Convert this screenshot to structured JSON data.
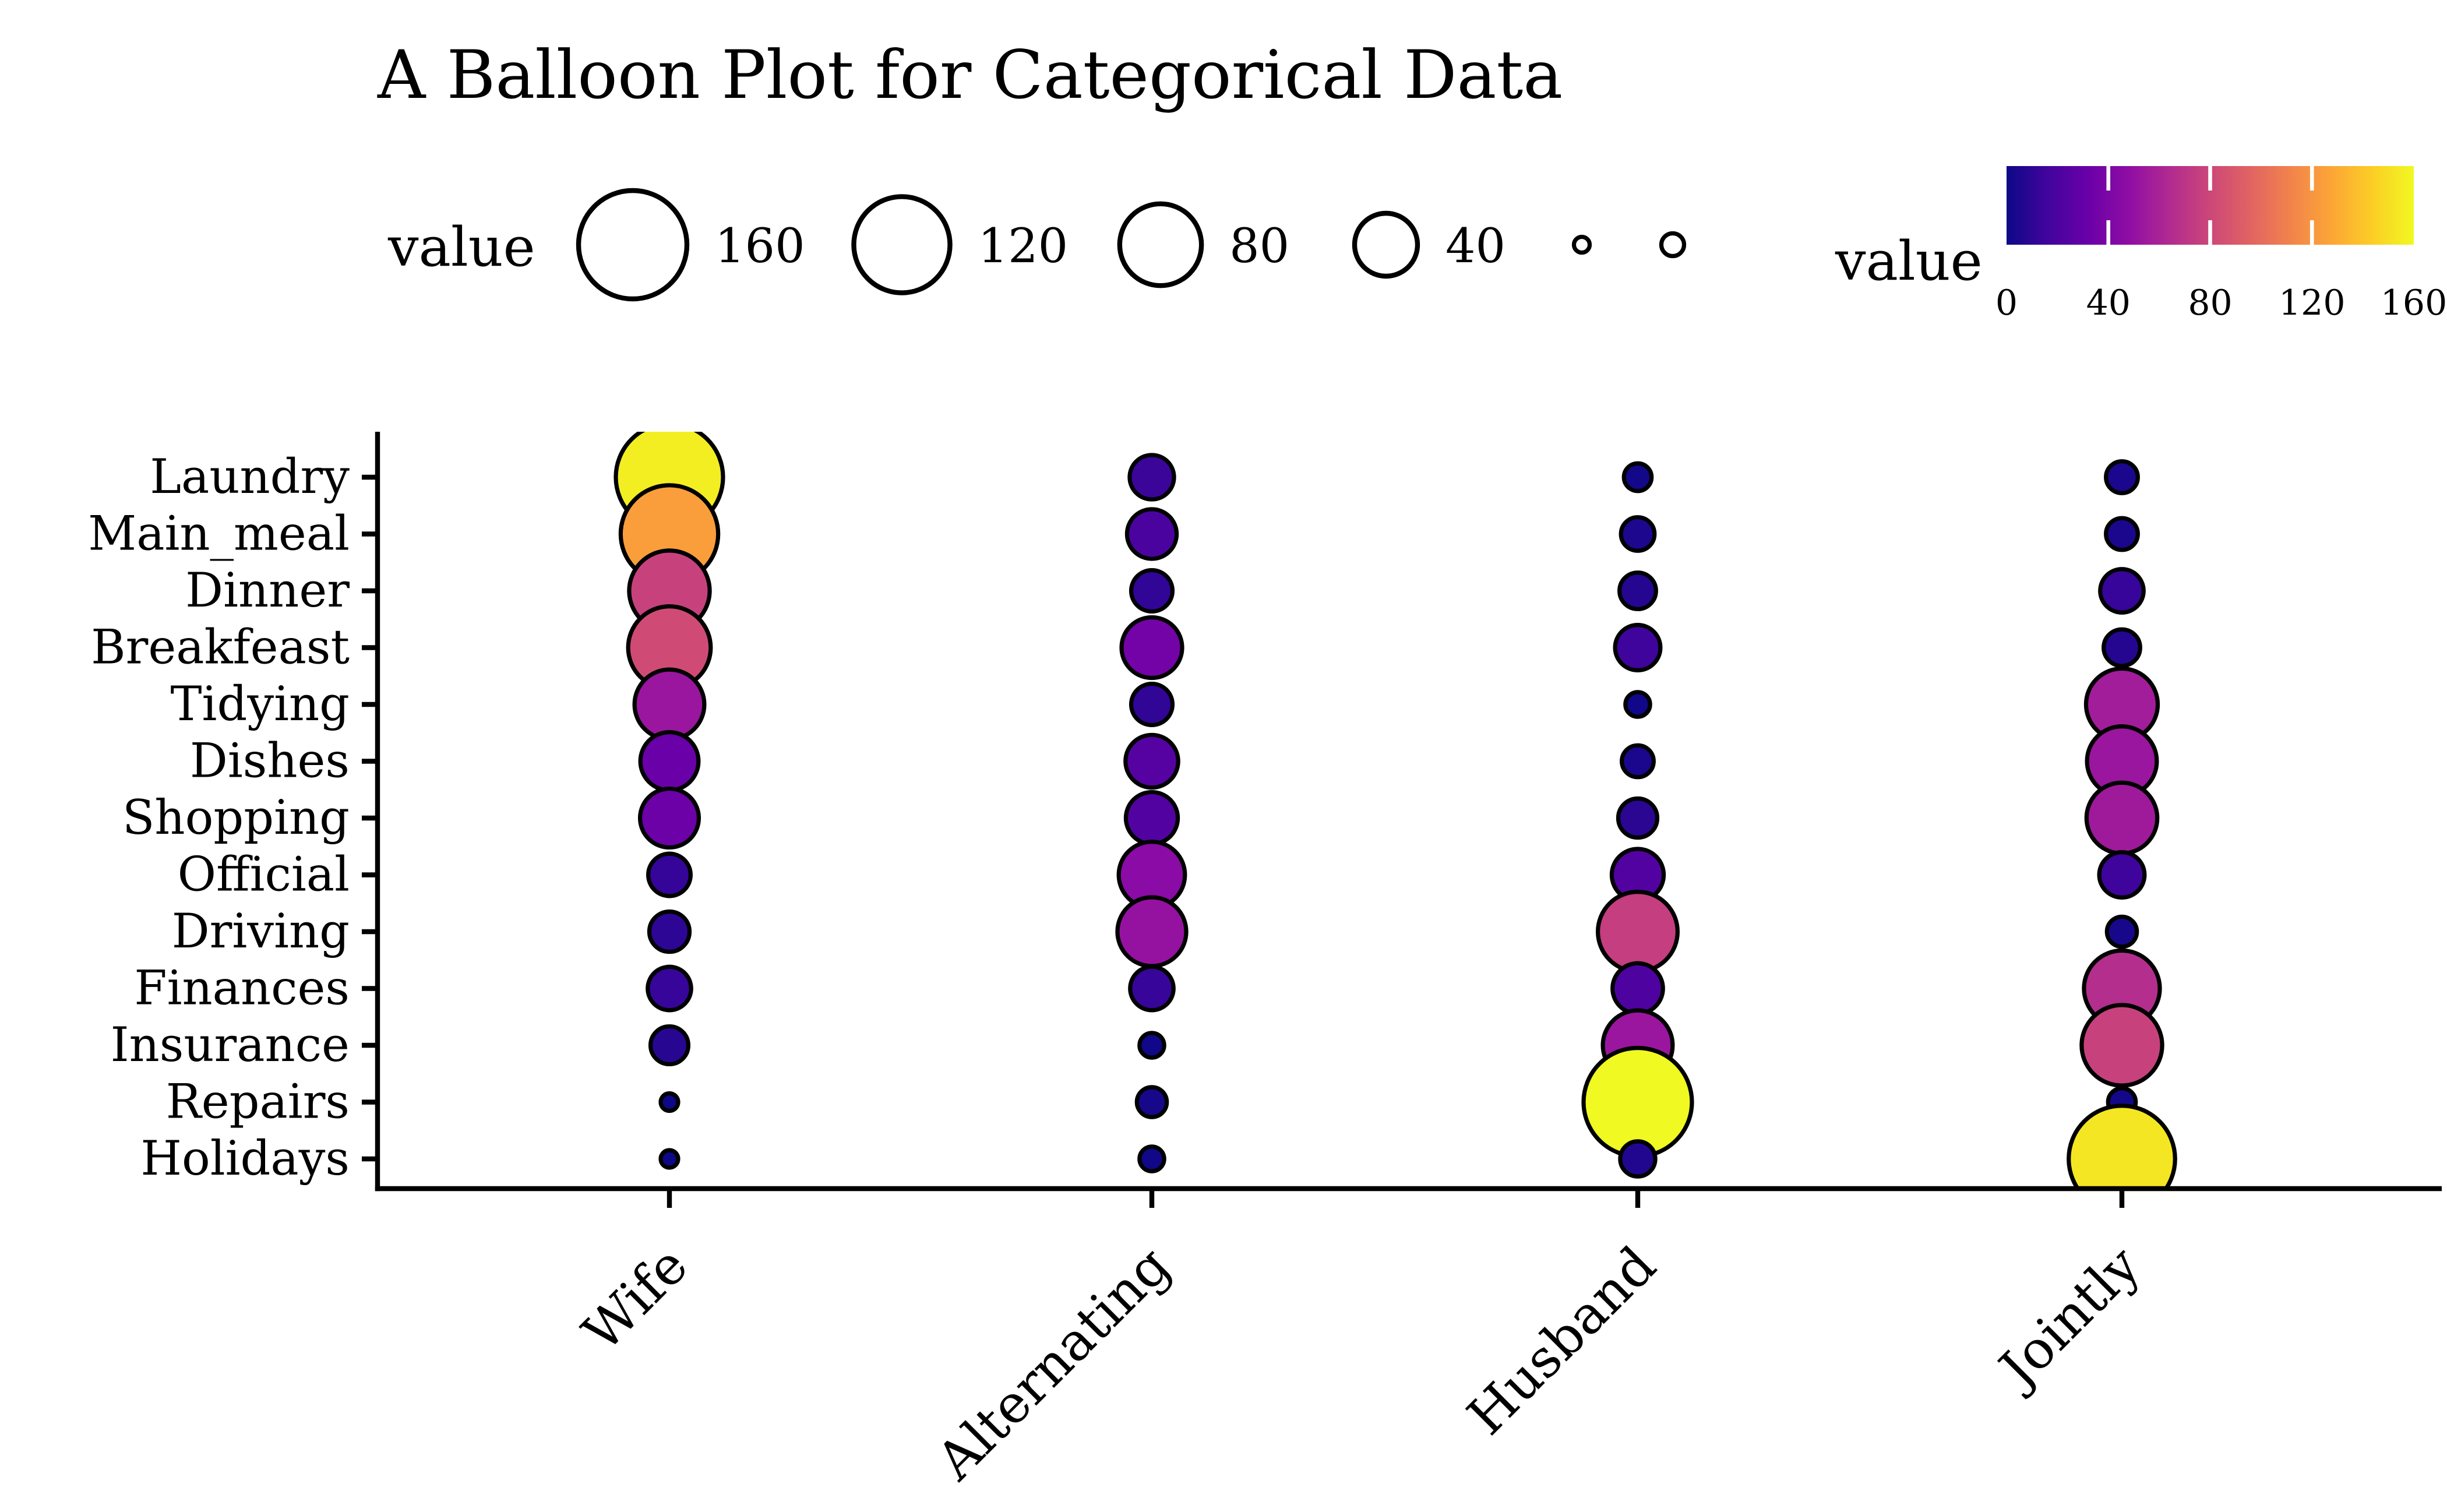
{
  "title": "A Balloon Plot for Categorical Data",
  "size_legend": {
    "label": "value",
    "breaks": [
      {
        "value": 160,
        "label": "160"
      },
      {
        "value": 120,
        "label": "120"
      },
      {
        "value": 80,
        "label": "80"
      },
      {
        "value": 40,
        "label": "40"
      }
    ],
    "unlabeled_dot_radii": [
      4.5,
      6.5
    ]
  },
  "color_legend": {
    "label": "value",
    "tick_values": [
      0,
      40,
      80,
      120,
      160
    ],
    "tick_labels": [
      "0",
      "40",
      "80",
      "120",
      "160"
    ],
    "min": 0,
    "max": 160
  },
  "palette": {
    "name": "plasma",
    "stops": [
      "#0d0887",
      "#41049d",
      "#6a00a8",
      "#8f0da4",
      "#b12a90",
      "#cc4778",
      "#e16462",
      "#f2844b",
      "#fca636",
      "#fcce25",
      "#f0f921"
    ]
  },
  "chart_data": {
    "type": "balloon",
    "title": "A Balloon Plot for Categorical Data",
    "rows": [
      "Laundry",
      "Main_meal",
      "Dinner",
      "Breakfeast",
      "Tidying",
      "Dishes",
      "Shopping",
      "Official",
      "Driving",
      "Finances",
      "Insurance",
      "Repairs",
      "Holidays"
    ],
    "columns": [
      "Wife",
      "Alternating",
      "Husband",
      "Jointly"
    ],
    "series": [
      {
        "name": "Wife",
        "values": [
          156,
          124,
          77,
          82,
          53,
          32,
          33,
          12,
          10,
          13,
          8,
          0,
          0
        ]
      },
      {
        "name": "Alternating",
        "values": [
          14,
          20,
          11,
          36,
          11,
          24,
          23,
          46,
          51,
          13,
          1,
          3,
          1
        ]
      },
      {
        "name": "Husband",
        "values": [
          2,
          5,
          7,
          15,
          1,
          4,
          9,
          23,
          75,
          21,
          53,
          160,
          6
        ]
      },
      {
        "name": "Jointly",
        "values": [
          4,
          4,
          13,
          7,
          57,
          53,
          55,
          15,
          3,
          66,
          77,
          2,
          153
        ]
      }
    ],
    "value_range": [
      0,
      160
    ],
    "size_scale": "sqrt",
    "color_scale": "plasma",
    "grid": false,
    "legend_position": "top",
    "x_label_angle": 45
  }
}
